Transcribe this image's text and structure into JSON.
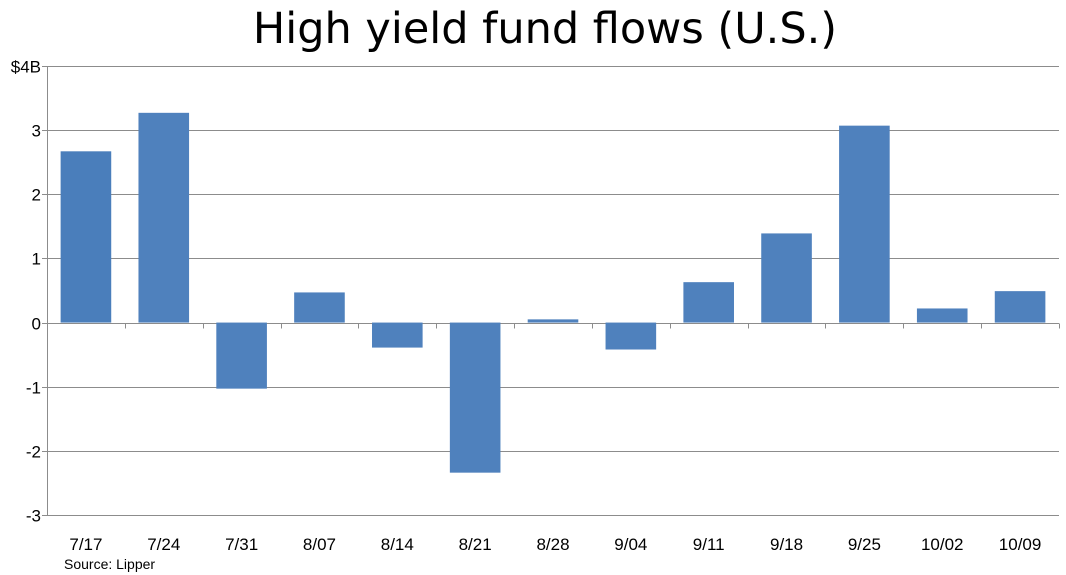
{
  "chart_data": {
    "type": "bar",
    "title": "High yield fund flows (U.S.)",
    "categories": [
      "7/17",
      "7/24",
      "7/31",
      "8/07",
      "8/14",
      "8/21",
      "8/28",
      "9/04",
      "9/11",
      "9/18",
      "9/25",
      "10/02",
      "10/09"
    ],
    "values": [
      2.67,
      3.27,
      -1.03,
      0.47,
      -0.39,
      -2.34,
      0.05,
      -0.42,
      0.63,
      1.39,
      3.07,
      0.22,
      0.49
    ],
    "ylim": [
      -3,
      4
    ],
    "yticks": [
      {
        "value": 4,
        "label": "$4B"
      },
      {
        "value": 3,
        "label": "3"
      },
      {
        "value": 2,
        "label": "2"
      },
      {
        "value": 1,
        "label": "1"
      },
      {
        "value": 0,
        "label": "0"
      },
      {
        "value": -1,
        "label": "-1"
      },
      {
        "value": -2,
        "label": "-2"
      },
      {
        "value": -3,
        "label": "-3"
      }
    ],
    "grid": true,
    "bar_color": "#4f81bd",
    "first_bar_color": "#4a7ebb",
    "source": "Source: Lipper"
  }
}
